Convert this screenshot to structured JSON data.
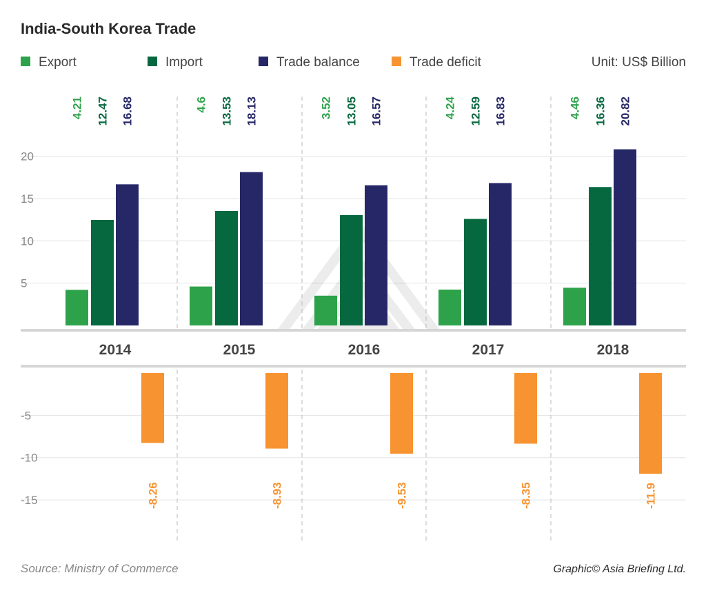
{
  "chart_data": {
    "type": "bar",
    "title": "India-South Korea Trade",
    "unit": "Unit: US$ Billion",
    "categories": [
      "2014",
      "2015",
      "2016",
      "2017",
      "2018"
    ],
    "series": [
      {
        "name": "Export",
        "color": "#2ea24a",
        "values": [
          4.21,
          4.6,
          3.52,
          4.24,
          4.46
        ]
      },
      {
        "name": "Import",
        "color": "#05683f",
        "values": [
          12.47,
          13.53,
          13.05,
          12.59,
          16.36
        ]
      },
      {
        "name": "Trade balance",
        "color": "#262766",
        "values": [
          16.68,
          18.13,
          16.57,
          16.83,
          20.82
        ]
      },
      {
        "name": "Trade deficit",
        "color": "#f79431",
        "values": [
          -8.26,
          -8.93,
          -9.53,
          -8.35,
          -11.9
        ]
      }
    ],
    "upper_axis": {
      "ticks": [
        "5",
        "10",
        "15",
        "20"
      ],
      "range": [
        0,
        21
      ]
    },
    "lower_axis": {
      "ticks": [
        "-5",
        "-10",
        "-15"
      ],
      "range": [
        -16,
        0
      ]
    },
    "source": "Source: Ministry of Commerce",
    "credit": "Graphic© Asia Briefing Ltd."
  }
}
